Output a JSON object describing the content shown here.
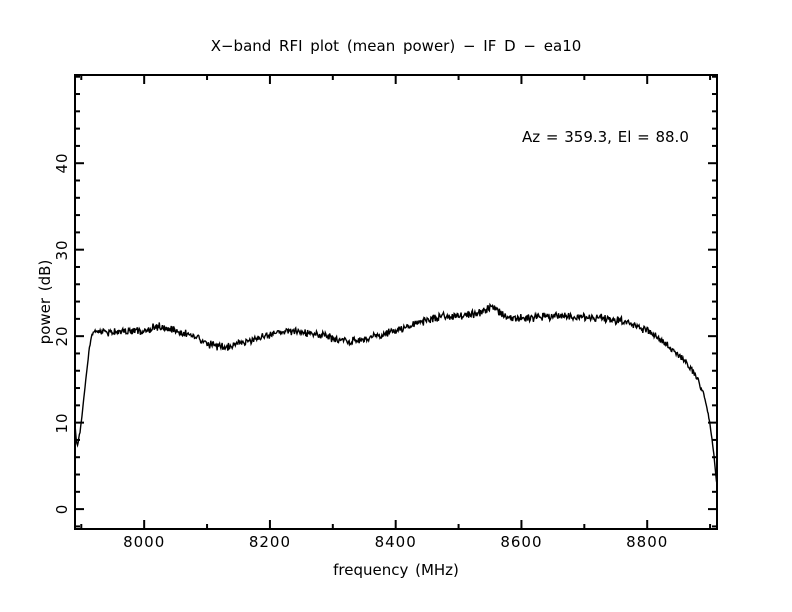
{
  "page": {
    "background": "#ffffff",
    "foreground": "#000000"
  },
  "chart_data": {
    "type": "line",
    "title": "X−band RFI plot (mean power) − IF D − ea10",
    "annotation": "Az = 359.3, El = 88.0",
    "xlabel": "frequency (MHz)",
    "ylabel": "power (dB)",
    "xlim": [
      7890,
      8911
    ],
    "ylim": [
      -2.3,
      50.2
    ],
    "x_major_ticks": [
      8000,
      8200,
      8400,
      8600,
      8800
    ],
    "x_minor_step": 100,
    "y_major_ticks": [
      0,
      10,
      20,
      30,
      40
    ],
    "y_minor_step": 2,
    "grid": false,
    "legend": "none",
    "line_color": "#000000",
    "frame_color": "#000000",
    "noise_db": 0.3,
    "series": [
      {
        "name": "mean power",
        "points": [
          [
            7890,
            9.8
          ],
          [
            7892,
            8.0
          ],
          [
            7894,
            7.3
          ],
          [
            7898,
            9.0
          ],
          [
            7903,
            12.0
          ],
          [
            7908,
            15.5
          ],
          [
            7913,
            18.8
          ],
          [
            7917,
            20.2
          ],
          [
            7922,
            20.5
          ],
          [
            7935,
            20.6
          ],
          [
            7950,
            20.4
          ],
          [
            7965,
            20.6
          ],
          [
            7980,
            20.5
          ],
          [
            7995,
            20.7
          ],
          [
            8010,
            20.9
          ],
          [
            8025,
            21.1
          ],
          [
            8040,
            20.8
          ],
          [
            8055,
            20.5
          ],
          [
            8070,
            20.2
          ],
          [
            8085,
            19.7
          ],
          [
            8100,
            19.1
          ],
          [
            8115,
            18.8
          ],
          [
            8130,
            18.7
          ],
          [
            8145,
            19.0
          ],
          [
            8160,
            19.3
          ],
          [
            8175,
            19.6
          ],
          [
            8190,
            20.0
          ],
          [
            8205,
            20.3
          ],
          [
            8220,
            20.6
          ],
          [
            8235,
            20.6
          ],
          [
            8250,
            20.4
          ],
          [
            8265,
            20.3
          ],
          [
            8280,
            20.1
          ],
          [
            8295,
            19.9
          ],
          [
            8310,
            19.6
          ],
          [
            8325,
            19.4
          ],
          [
            8340,
            19.5
          ],
          [
            8355,
            19.7
          ],
          [
            8370,
            20.0
          ],
          [
            8385,
            20.3
          ],
          [
            8400,
            20.6
          ],
          [
            8415,
            21.0
          ],
          [
            8430,
            21.4
          ],
          [
            8445,
            21.7
          ],
          [
            8460,
            22.0
          ],
          [
            8475,
            22.3
          ],
          [
            8490,
            22.4
          ],
          [
            8505,
            22.3
          ],
          [
            8520,
            22.5
          ],
          [
            8535,
            22.8
          ],
          [
            8548,
            23.1
          ],
          [
            8555,
            23.3
          ],
          [
            8562,
            22.9
          ],
          [
            8575,
            22.4
          ],
          [
            8590,
            22.2
          ],
          [
            8605,
            22.1
          ],
          [
            8620,
            22.2
          ],
          [
            8635,
            22.3
          ],
          [
            8650,
            22.3
          ],
          [
            8665,
            22.3
          ],
          [
            8680,
            22.2
          ],
          [
            8695,
            22.2
          ],
          [
            8710,
            22.1
          ],
          [
            8725,
            22.1
          ],
          [
            8740,
            22.0
          ],
          [
            8755,
            21.8
          ],
          [
            8770,
            21.5
          ],
          [
            8785,
            21.1
          ],
          [
            8800,
            20.6
          ],
          [
            8815,
            19.9
          ],
          [
            8830,
            19.1
          ],
          [
            8845,
            18.2
          ],
          [
            8860,
            17.1
          ],
          [
            8872,
            16.0
          ],
          [
            8882,
            14.7
          ],
          [
            8890,
            13.2
          ],
          [
            8896,
            11.4
          ],
          [
            8901,
            9.3
          ],
          [
            8905,
            7.0
          ],
          [
            8908,
            4.8
          ],
          [
            8910,
            3.3
          ],
          [
            8911,
            2.9
          ]
        ]
      }
    ]
  }
}
